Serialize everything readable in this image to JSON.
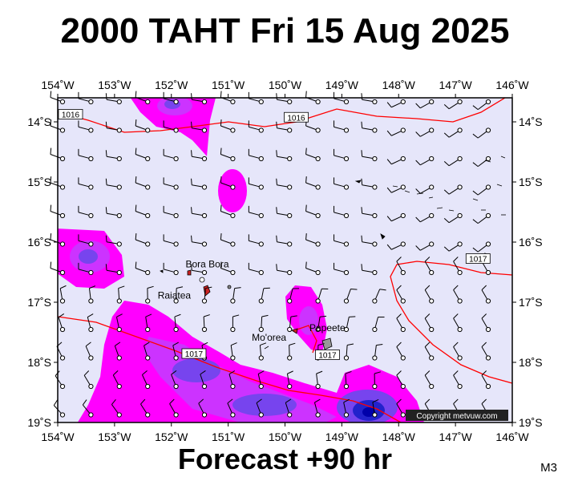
{
  "title": "2000 TAHT Fri 15 Aug 2025",
  "footer": "Forecast +90 hr",
  "model_tag": "M3",
  "copyright": "Copyright metvuw.com",
  "colors": {
    "ocean": "#e6e6fa",
    "rain_light": "#ff00ff",
    "rain_mid": "#cc33ff",
    "rain_heavy": "#7744ee",
    "rain_max": "#2222cc",
    "isobar": "#ff0000",
    "land": "#000000"
  },
  "map": {
    "lon_range": [
      -154,
      -146
    ],
    "lat_range": [
      -19,
      -13.6
    ],
    "lon_ticks": [
      {
        "value": -154,
        "label": "154˚W"
      },
      {
        "value": -153,
        "label": "153˚W"
      },
      {
        "value": -152,
        "label": "152˚W"
      },
      {
        "value": -151,
        "label": "151˚W"
      },
      {
        "value": -150,
        "label": "150˚W"
      },
      {
        "value": -149,
        "label": "149˚W"
      },
      {
        "value": -148,
        "label": "148˚W"
      },
      {
        "value": -147,
        "label": "147˚W"
      },
      {
        "value": -146,
        "label": "146˚W"
      }
    ],
    "lat_ticks": [
      {
        "value": -14,
        "label": "14˚S"
      },
      {
        "value": -15,
        "label": "15˚S"
      },
      {
        "value": -16,
        "label": "16˚S"
      },
      {
        "value": -17,
        "label": "17˚S"
      },
      {
        "value": -18,
        "label": "18˚S"
      },
      {
        "value": -19,
        "label": "19˚S"
      }
    ],
    "places": [
      {
        "name": "Bora Bora",
        "lon": -151.75,
        "lat": -16.5
      },
      {
        "name": "Raiatea",
        "lon": -151.45,
        "lat": -16.83
      },
      {
        "name": "Mo'orea",
        "lon": -149.85,
        "lat": -17.53
      },
      {
        "name": "Papeete",
        "lon": -149.57,
        "lat": -17.53
      }
    ],
    "isobar_labels": [
      {
        "text": "1016",
        "lon": -154.0,
        "lat": -13.9
      },
      {
        "text": "1016",
        "lon": -150.0,
        "lat": -13.95
      },
      {
        "text": "1017",
        "lon": -146.8,
        "lat": -16.3
      },
      {
        "text": "1017",
        "lon": -151.8,
        "lat": -17.88
      },
      {
        "text": "1017",
        "lon": -149.45,
        "lat": -17.9
      }
    ]
  }
}
